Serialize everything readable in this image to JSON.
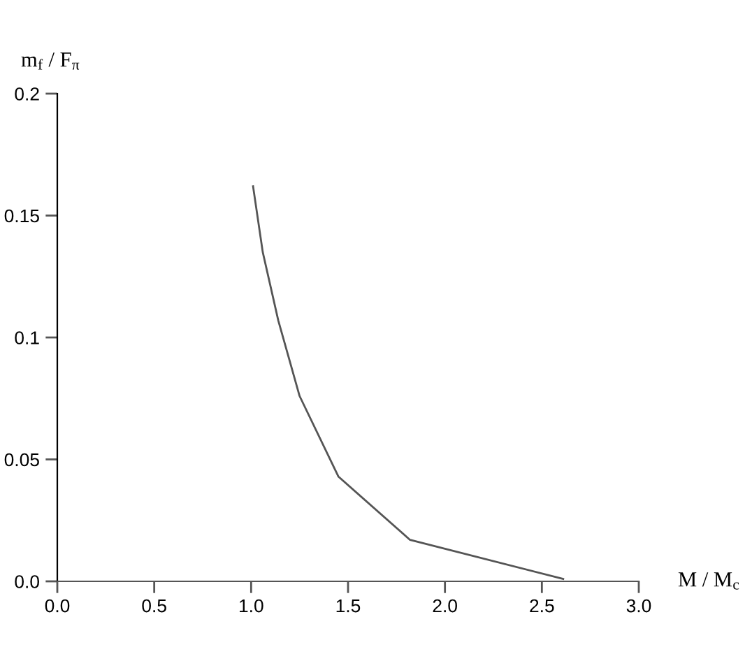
{
  "chart_data": {
    "type": "line",
    "xlabel": "M / M$_{c}$",
    "ylabel": "m$_{f}$ / F$_{π}$",
    "x": [
      1.01,
      1.06,
      1.14,
      1.25,
      1.45,
      1.82,
      2.61
    ],
    "series": [
      {
        "color": "#555555",
        "values": [
          0.162,
          0.135,
          0.107,
          0.076,
          0.043,
          0.017,
          0.001
        ]
      }
    ],
    "xlim": [
      0.0,
      3.0
    ],
    "xticks": [
      {
        "value": 0.0,
        "label": "0.0"
      },
      0.5,
      {
        "value": 1.0,
        "label": "1.0"
      },
      1.5,
      {
        "value": 2.0,
        "label": "2.0"
      },
      2.5,
      {
        "value": 3.0,
        "label": "3.0"
      }
    ],
    "ylim": [
      0.0,
      0.2
    ],
    "yticks": [
      {
        "value": 0.0,
        "label": "0.0"
      },
      0.05,
      0.1,
      0.15,
      0.2
    ],
    "grid": false,
    "marker": "none",
    "line_style": "solid"
  }
}
